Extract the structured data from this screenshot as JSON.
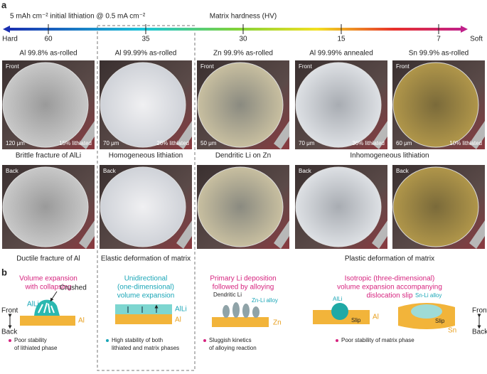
{
  "panel_a": {
    "label": "a",
    "condition": "5 mAh cm⁻² initial lithiation @ 0.5 mA cm⁻²",
    "axis_title": "Matrix hardness (HV)",
    "hard": "Hard",
    "soft": "Soft",
    "ticks": [
      "60",
      "35",
      "30",
      "15",
      "7"
    ],
    "columns": [
      {
        "title": "Al 99.8% as-rolled",
        "front": {
          "side": "Front",
          "scale": "120 μm",
          "lithiated": "15% lithiated"
        },
        "back": {
          "side": "Back"
        }
      },
      {
        "title": "Al 99.99% as-rolled",
        "front": {
          "scale": "70 μm",
          "lithiated": "26% lithiated"
        },
        "back": {
          "side": "Back"
        }
      },
      {
        "title": "Zn 99.9% as-rolled",
        "front": {
          "side": "Front",
          "scale": "50 μm"
        },
        "back": {}
      },
      {
        "title": "Al 99.99% annealed",
        "front": {
          "side": "Front",
          "scale": "70 μm",
          "lithiated": "36% lithiated"
        },
        "back": {
          "side": "Back"
        }
      },
      {
        "title": "Sn 99.9% as-rolled",
        "front": {
          "side": "Front",
          "scale": "60 μm",
          "lithiated": "10% lithiated"
        },
        "back": {
          "side": "Back"
        }
      }
    ],
    "front_captions": [
      "Brittle fracture of AlLi",
      "Homogeneous lithiation",
      "Dendritic Li on Zn",
      "Inhomogeneous lithiation"
    ],
    "back_captions": [
      "Ductile fracture of Al",
      "Elastic deformation of matrix",
      "Plastic deformation of matrix"
    ]
  },
  "panel_b": {
    "label": "b",
    "front_left": "Front",
    "back_left": "Back",
    "front_right": "Front",
    "back_right": "Back",
    "schemes": [
      {
        "heading": [
          "Volume expansion",
          "with collapsing"
        ],
        "labels": [
          "AlLi",
          "Crushed",
          "Al"
        ],
        "note": [
          "Poor stability",
          "of lithiated phase"
        ]
      },
      {
        "heading": [
          "Unidirectional",
          "(one-dimensional)",
          "volume expansion"
        ],
        "labels": [
          "AlLi",
          "Al"
        ],
        "note": [
          "High stability of both",
          "lithiated and matrix phases"
        ]
      },
      {
        "heading": [
          "Primary Li deposition",
          "followed by alloying"
        ],
        "labels": [
          "Dendritic Li",
          "Zn-Li alloy",
          "Zn"
        ],
        "note": [
          "Sluggish kinetics",
          "of alloying reaction"
        ]
      },
      {
        "heading": [
          "Isotropic (three-dimensional)",
          "volume expansion accompanying",
          "dislocation slip"
        ],
        "labels": [
          "AlLi",
          "Al",
          "Slip",
          "Sn-Li alloy",
          "Slip",
          "Sn"
        ],
        "note": [
          "Poor stability of matrix phase"
        ]
      }
    ]
  }
}
